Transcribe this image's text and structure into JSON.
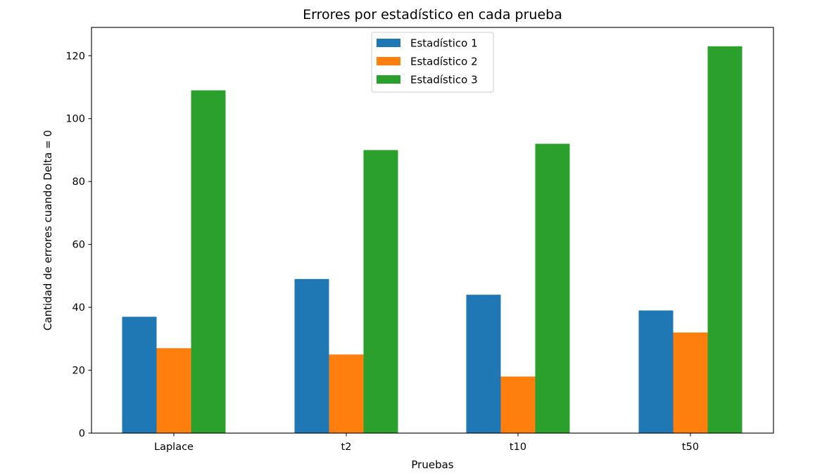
{
  "chart_data": {
    "type": "bar",
    "title": "Errores por estadístico en cada prueba",
    "xlabel": "Pruebas",
    "ylabel": "Cantidad de errores  cuando Delta = 0",
    "categories": [
      "Laplace",
      "t2",
      "t10",
      "t50"
    ],
    "series": [
      {
        "name": "Estadístico 1",
        "values": [
          37,
          49,
          44,
          39
        ],
        "color": "#1f77b4"
      },
      {
        "name": "Estadístico 2",
        "values": [
          27,
          25,
          18,
          32
        ],
        "color": "#ff7f0e"
      },
      {
        "name": "Estadístico 3",
        "values": [
          109,
          90,
          92,
          123
        ],
        "color": "#2ca02c"
      }
    ],
    "ylim": [
      0,
      129
    ],
    "yticks": [
      0,
      20,
      40,
      60,
      80,
      100,
      120
    ],
    "legend_position": "upper center",
    "grid": false
  }
}
